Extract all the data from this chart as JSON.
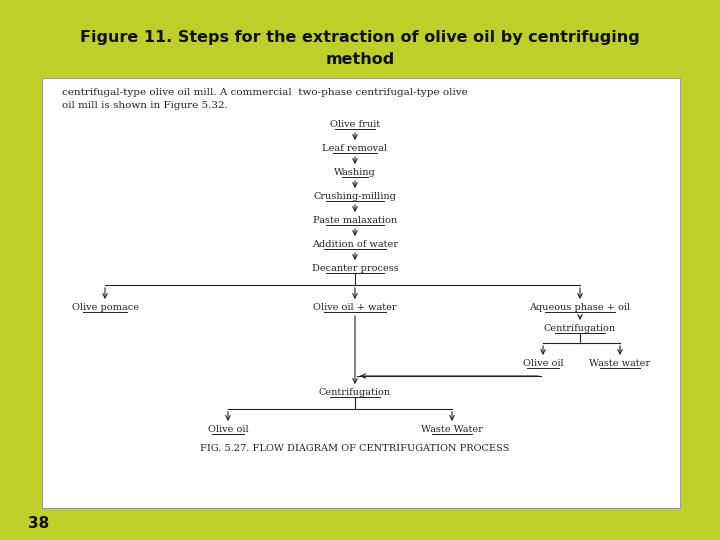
{
  "title_line1": "Figure 11. Steps for the extraction of olive oil by centrifuging",
  "title_line2": "method",
  "page_number": "38",
  "bg_color": "#bfcf2a",
  "panel_bg": "#ffffff",
  "title_color": "#111111",
  "body_text_line1": "centrifugal-type olive oil mill. A commercial  two-phase centrifugal-type olive",
  "body_text_line2": "oil mill is shown in Figure 5.32.",
  "flow_steps_center": [
    "Olive fruit",
    "Leaf removal",
    "Washing",
    "Crushing-milling",
    "Paste malaxation",
    "Addition of water",
    "Decanter process"
  ],
  "branch_left": "Olive pomace",
  "branch_center": "Olive oil + water",
  "branch_right": "Aqueous phase + oil",
  "centrifugation_right": "Centrifugation",
  "olive_oil_right": "Olive oil",
  "waste_water_right": "Waste water",
  "centrifugation_bottom": "Centrifugation",
  "olive_oil_bottom": "Olive oil",
  "waste_water_bottom": "Waste Water",
  "fig_caption": "FIG. 5.27. FLOW DIAGRAM OF CENTRIFUGATION PROCESS",
  "text_color": "#222222"
}
